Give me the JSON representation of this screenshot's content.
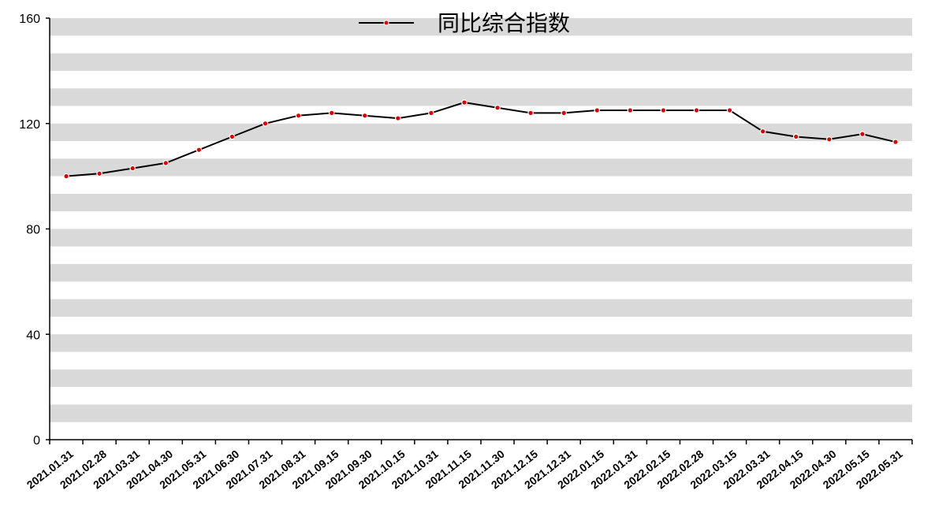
{
  "chart_data": {
    "type": "line",
    "title": "",
    "xlabel": "",
    "ylabel": "",
    "ylim": [
      0,
      160
    ],
    "yticks": [
      0,
      40,
      80,
      120,
      160
    ],
    "grid": "horizontal alternating bands",
    "legend": "top-center",
    "categories": [
      "2021.01.31",
      "2021.02.28",
      "2021.03.31",
      "2021.04.30",
      "2021.05.31",
      "2021.06.30",
      "2021.07.31",
      "2021.08.31",
      "2021.09.15",
      "2021.09.30",
      "2021.10.15",
      "2021.10.31",
      "2021.11.15",
      "2021.11.30",
      "2021.12.15",
      "2021.12.31",
      "2022.01.15",
      "2022.01.31",
      "2022.02.15",
      "2022.02.28",
      "2022.03.15",
      "2022.03.31",
      "2022.04.15",
      "2022.04.30",
      "2022.05.15",
      "2022.05.31"
    ],
    "series": [
      {
        "name": "同比综合指数",
        "color": "#000000",
        "marker_color": "#e00000",
        "values": [
          100,
          101,
          103,
          105,
          110,
          115,
          120,
          123,
          124,
          123,
          122,
          124,
          128,
          126,
          124,
          124,
          125,
          125,
          125,
          125,
          125,
          117,
          115,
          114,
          116,
          113
        ]
      }
    ]
  }
}
